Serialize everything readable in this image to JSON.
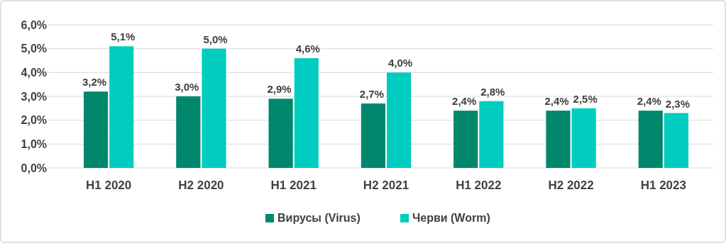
{
  "chart_data": {
    "type": "bar",
    "categories": [
      "H1 2020",
      "H2 2020",
      "H1 2021",
      "H2 2021",
      "H1 2022",
      "H2 2022",
      "H1 2023"
    ],
    "series": [
      {
        "name": "Вирусы (Virus)",
        "color": "#00876c",
        "values": [
          3.2,
          3.0,
          2.9,
          2.7,
          2.4,
          2.4,
          2.4
        ],
        "value_labels": [
          "3,2%",
          "3,0%",
          "2,9%",
          "2,7%",
          "2,4%",
          "2,4%",
          "2,4%"
        ]
      },
      {
        "name": "Черви (Worm)",
        "color": "#00cdbf",
        "values": [
          5.1,
          5.0,
          4.6,
          4.0,
          2.8,
          2.5,
          2.3
        ],
        "value_labels": [
          "5,1%",
          "5,0%",
          "4,6%",
          "4,0%",
          "2,8%",
          "2,5%",
          "2,3%"
        ]
      }
    ],
    "ylim": [
      0,
      6
    ],
    "yticks": [
      {
        "value": 0,
        "label": "0,0%"
      },
      {
        "value": 1,
        "label": "1,0%"
      },
      {
        "value": 2,
        "label": "2,0%"
      },
      {
        "value": 3,
        "label": "3,0%"
      },
      {
        "value": 4,
        "label": "4,0%"
      },
      {
        "value": 5,
        "label": "5,0%"
      },
      {
        "value": 6,
        "label": "6,0%"
      }
    ],
    "grid": "y",
    "legend": "bottom"
  }
}
